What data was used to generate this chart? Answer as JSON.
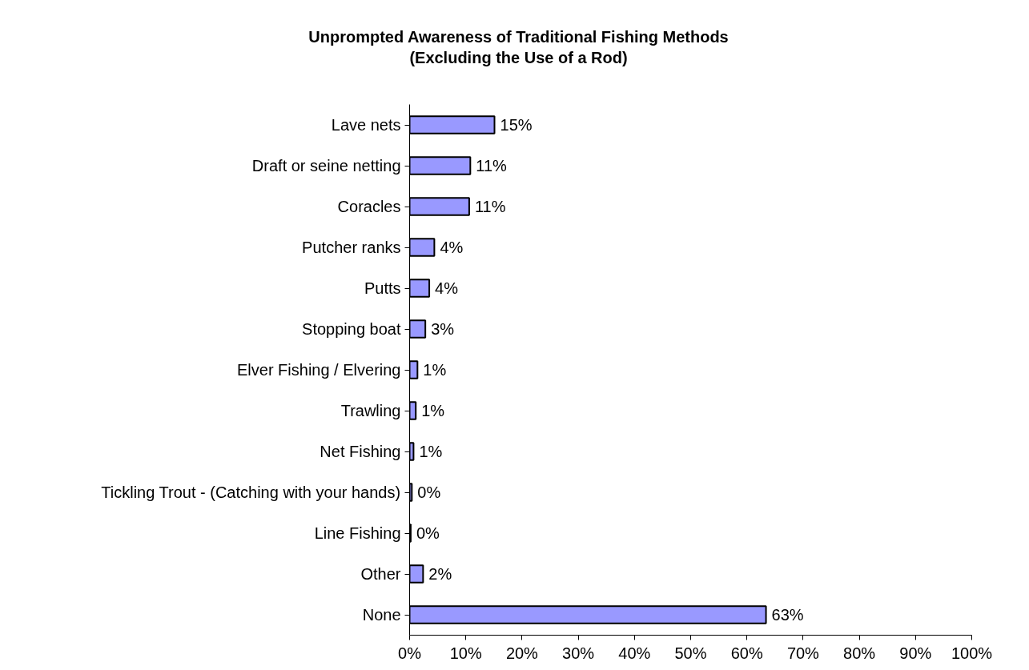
{
  "chart_data": {
    "type": "bar",
    "orientation": "horizontal",
    "title": "Unprompted Awareness of Traditional Fishing Methods\n(Excluding the Use of a Rod)",
    "categories": [
      "Lave nets",
      "Draft or seine netting",
      "Coracles",
      "Putcher ranks",
      "Putts",
      "Stopping boat",
      "Elver Fishing / Elvering",
      "Trawling",
      "Net Fishing",
      "Tickling Trout - (Catching with your hands)",
      "Line Fishing",
      "Other",
      "None"
    ],
    "values": [
      15.1,
      10.8,
      10.6,
      4.4,
      3.5,
      2.8,
      1.4,
      1.1,
      0.7,
      0.4,
      0.2,
      2.4,
      63.4
    ],
    "value_labels": [
      "15%",
      "11%",
      "11%",
      "4%",
      "4%",
      "3%",
      "1%",
      "1%",
      "1%",
      "0%",
      "0%",
      "2%",
      "63%"
    ],
    "color": "#9999ff",
    "xlim": [
      0,
      100
    ],
    "xticks": [
      {
        "value": 0,
        "label": "0%"
      },
      {
        "value": 10,
        "label": "10%"
      },
      {
        "value": 20,
        "label": "20%"
      },
      {
        "value": 30,
        "label": "30%"
      },
      {
        "value": 40,
        "label": "40%"
      },
      {
        "value": 50,
        "label": "50%"
      },
      {
        "value": 60,
        "label": "60%"
      },
      {
        "value": 70,
        "label": "70%"
      },
      {
        "value": 80,
        "label": "80%"
      },
      {
        "value": 90,
        "label": "90%"
      },
      {
        "value": 100,
        "label": "100%"
      }
    ],
    "grid": false
  }
}
